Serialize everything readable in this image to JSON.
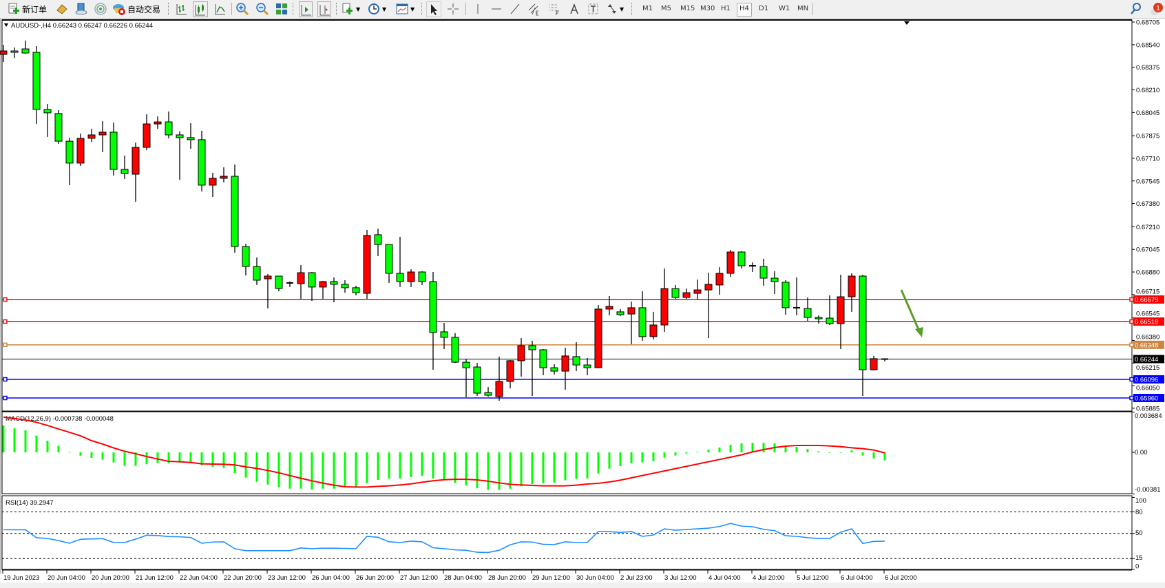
{
  "toolbar": {
    "new_order_label": "新订单",
    "auto_trading_label": "自动交易",
    "timeframes": [
      "M1",
      "M5",
      "M15",
      "M30",
      "H1",
      "H4",
      "D1",
      "W1",
      "MN"
    ],
    "selected_timeframe": "H4",
    "notification_count": "1"
  },
  "chart": {
    "header": "AUDUSD-,H4  0.66243 0.66247 0.66226 0.66244",
    "colors": {
      "bull": "#ff0000",
      "bear": "#00ff00",
      "macd_hist": "#00ff00",
      "macd_signal": "#ff0000",
      "rsi": "#1e90ff",
      "arrow": "#5a9e2a"
    },
    "price_ticks": [
      "0.68705",
      "0.68540",
      "0.68375",
      "0.68210",
      "0.68045",
      "0.67875",
      "0.67710",
      "0.67545",
      "0.67380",
      "0.67210",
      "0.67045",
      "0.66880",
      "0.66715",
      "0.66545",
      "0.66380",
      "0.66215",
      "0.66050",
      "0.65885"
    ],
    "levels": [
      {
        "price": "0.66679",
        "color": "#ff0000"
      },
      {
        "price": "0.66518",
        "color": "#ff0000"
      },
      {
        "price": "0.66348",
        "color": "#cd853f"
      },
      {
        "price": "0.66096",
        "color": "#0000ff"
      },
      {
        "price": "0.65960",
        "color": "#0000ff"
      }
    ],
    "bid": {
      "price": "0.66244",
      "color": "#000000"
    },
    "time_labels": [
      "19 Jun 2023",
      "20 Jun 04:00",
      "20 Jun 20:00",
      "21 Jun 12:00",
      "22 Jun 04:00",
      "22 Jun 20:00",
      "23 Jun 12:00",
      "26 Jun 04:00",
      "26 Jun 20:00",
      "27 Jun 12:00",
      "28 Jun 04:00",
      "28 Jun 20:00",
      "29 Jun 12:00",
      "30 Jun 04:00",
      "2 Jul 23:00",
      "3 Jul 12:00",
      "4 Jul 04:00",
      "4 Jul 20:00",
      "5 Jul 12:00",
      "6 Jul 04:00",
      "6 Jul 20:00"
    ],
    "macd": {
      "label": "MACD(12,26,9) -0.000738 -0.000048",
      "ticks": [
        "0.003684",
        "0.00",
        "-0.00381"
      ]
    },
    "rsi": {
      "label": "RSI(14) 39.2947",
      "ticks": [
        "100",
        "80",
        "50",
        "15",
        "0"
      ]
    }
  },
  "chart_data": {
    "type": "candlestick",
    "symbol": "AUDUSD-",
    "timeframe": "H4",
    "ylim": [
      0.65885,
      0.68705
    ],
    "open": [
      0.68469,
      0.68494,
      0.68509,
      0.68484,
      0.68067,
      0.68037,
      0.67835,
      0.67675,
      0.67856,
      0.67881,
      0.67901,
      0.67629,
      0.67594,
      0.6779,
      0.67961,
      0.67976,
      0.67881,
      0.67861,
      0.67846,
      0.67514,
      0.67564,
      0.67579,
      0.67066,
      0.6692,
      0.6683,
      0.6685,
      0.668,
      0.66795,
      0.66875,
      0.6677,
      0.6681,
      0.6679,
      0.66765,
      0.66724,
      0.67152,
      0.67081,
      0.6687,
      0.6681,
      0.6688,
      0.6681,
      0.66443,
      0.66403,
      0.66221,
      0.66186,
      0.66,
      0.6597,
      0.66081,
      0.66232,
      0.66342,
      0.66312,
      0.66181,
      0.66156,
      0.66262,
      0.66201,
      0.66181,
      0.66609,
      0.66589,
      0.66573,
      0.66619,
      0.66408,
      0.66493,
      0.66759,
      0.66694,
      0.66724,
      0.66749,
      0.66785,
      0.6687,
      0.67026,
      0.66925,
      0.6692,
      0.66835,
      0.66805,
      0.66619,
      0.66614,
      0.66548,
      0.66543,
      0.66503,
      0.66699,
      0.6685,
      0.66166,
      0.66243
    ],
    "high": [
      0.68539,
      0.68519,
      0.6857,
      0.68529,
      0.68107,
      0.68062,
      0.67861,
      0.67891,
      0.67926,
      0.67981,
      0.67971,
      0.6773,
      0.67825,
      0.68032,
      0.68016,
      0.68052,
      0.67906,
      0.67966,
      0.67911,
      0.67604,
      0.67644,
      0.67665,
      0.67086,
      0.66986,
      0.66865,
      0.6685,
      0.6681,
      0.6693,
      0.6688,
      0.66815,
      0.6684,
      0.6682,
      0.6678,
      0.67187,
      0.67197,
      0.67081,
      0.67137,
      0.669,
      0.66885,
      0.6688,
      0.66508,
      0.66433,
      0.66242,
      0.66216,
      0.6604,
      0.66262,
      0.66237,
      0.66397,
      0.66377,
      0.66317,
      0.66206,
      0.66327,
      0.66367,
      0.66252,
      0.66639,
      0.66704,
      0.66609,
      0.66664,
      0.66739,
      0.66589,
      0.66905,
      0.66785,
      0.66759,
      0.66825,
      0.66875,
      0.66915,
      0.67041,
      0.67031,
      0.6695,
      0.66976,
      0.66885,
      0.6682,
      0.6684,
      0.66694,
      0.66563,
      0.66709,
      0.6686,
      0.6687,
      0.6686,
      0.66267,
      0.66247
    ],
    "low": [
      0.68414,
      0.68444,
      0.68474,
      0.67961,
      0.67866,
      0.67815,
      0.67514,
      0.67654,
      0.6783,
      0.67755,
      0.67584,
      0.67559,
      0.67393,
      0.6777,
      0.67926,
      0.67856,
      0.67554,
      0.6778,
      0.67468,
      0.67428,
      0.67534,
      0.67021,
      0.66855,
      0.66785,
      0.66614,
      0.66739,
      0.6677,
      0.66684,
      0.66669,
      0.66684,
      0.66659,
      0.66729,
      0.66709,
      0.66684,
      0.66996,
      0.668,
      0.6677,
      0.6677,
      0.66785,
      0.66166,
      0.66317,
      0.66216,
      0.65965,
      0.65975,
      0.6597,
      0.6594,
      0.6603,
      0.66116,
      0.65975,
      0.66126,
      0.66131,
      0.6602,
      0.66156,
      0.66126,
      0.66181,
      0.66563,
      0.66558,
      0.66352,
      0.66377,
      0.66387,
      0.66443,
      0.66684,
      0.66684,
      0.66679,
      0.66397,
      0.66714,
      0.66845,
      0.66905,
      0.6688,
      0.6678,
      0.66719,
      0.66568,
      0.66563,
      0.66523,
      0.66503,
      0.66493,
      0.66317,
      0.66589,
      0.65975,
      0.66161,
      0.66226
    ],
    "close": [
      0.68494,
      0.68484,
      0.68479,
      0.68067,
      0.68042,
      0.67835,
      0.67675,
      0.67856,
      0.67881,
      0.67901,
      0.67629,
      0.67599,
      0.6779,
      0.67961,
      0.67976,
      0.67881,
      0.67861,
      0.67846,
      0.67514,
      0.67564,
      0.67579,
      0.67066,
      0.6692,
      0.6682,
      0.6685,
      0.66759,
      0.66795,
      0.66875,
      0.6677,
      0.6681,
      0.6679,
      0.66765,
      0.66729,
      0.67147,
      0.67081,
      0.6687,
      0.6681,
      0.6688,
      0.6681,
      0.66438,
      0.66403,
      0.66221,
      0.66181,
      0.65995,
      0.6598,
      0.66081,
      0.66232,
      0.66342,
      0.66312,
      0.66181,
      0.66156,
      0.66267,
      0.66201,
      0.66181,
      0.66609,
      0.66629,
      0.66568,
      0.66619,
      0.66408,
      0.66493,
      0.66759,
      0.66694,
      0.66729,
      0.66749,
      0.6679,
      0.6687,
      0.67026,
      0.66925,
      0.6692,
      0.66835,
      0.6681,
      0.66619,
      0.66614,
      0.66548,
      0.66538,
      0.66503,
      0.66699,
      0.6685,
      0.66166,
      0.66247,
      0.66244
    ],
    "macd": {
      "ylim": [
        -0.00381,
        0.003684
      ],
      "histogram": [
        0.00246,
        0.0022,
        0.00202,
        0.00153,
        0.00107,
        0.00059,
        3e-05,
        -0.0003,
        -0.0005,
        -0.00067,
        -0.00093,
        -0.00124,
        -0.00124,
        -0.00109,
        -0.00099,
        -0.00099,
        -0.00094,
        -0.00094,
        -0.00118,
        -0.00132,
        -0.00143,
        -0.00189,
        -0.00231,
        -0.00269,
        -0.00294,
        -0.00319,
        -0.00332,
        -0.00332,
        -0.0034,
        -0.00332,
        -0.00332,
        -0.00315,
        -0.00315,
        -0.00281,
        -0.00252,
        -0.00239,
        -0.00239,
        -0.00227,
        -0.00214,
        -0.00239,
        -0.00248,
        -0.00281,
        -0.00302,
        -0.00327,
        -0.00344,
        -0.00344,
        -0.00332,
        -0.0031,
        -0.0029,
        -0.00281,
        -0.00277,
        -0.00256,
        -0.00243,
        -0.00237,
        -0.00193,
        -0.00149,
        -0.00126,
        -0.00101,
        -0.00092,
        -0.0008,
        -0.00048,
        -0.00029,
        -0.0001,
        4e-05,
        0.00025,
        0.00044,
        0.00069,
        0.00082,
        0.00088,
        0.00088,
        0.00082,
        0.00052,
        0.0005,
        0.00031,
        0.0001,
        -4e-05,
        -4e-05,
        0.00019,
        -0.00029,
        -0.00055,
        -0.000738
      ],
      "signal": [
        0.00323,
        0.0031,
        0.00296,
        0.00275,
        0.00246,
        0.00214,
        0.00183,
        0.00151,
        0.00107,
        0.00076,
        0.00041,
        0.0001,
        -0.00013,
        -0.00038,
        -0.00061,
        -0.00082,
        -0.00086,
        -0.00093,
        -0.00105,
        -0.00107,
        -0.00109,
        -0.00115,
        -0.00132,
        -0.00147,
        -0.00166,
        -0.00187,
        -0.00212,
        -0.00237,
        -0.0026,
        -0.00281,
        -0.003,
        -0.00315,
        -0.00317,
        -0.00317,
        -0.00311,
        -0.00306,
        -0.00298,
        -0.00288,
        -0.00273,
        -0.0026,
        -0.0025,
        -0.00246,
        -0.00246,
        -0.00252,
        -0.00264,
        -0.00279,
        -0.00292,
        -0.00298,
        -0.00302,
        -0.00306,
        -0.00306,
        -0.00306,
        -0.003,
        -0.0029,
        -0.00283,
        -0.00271,
        -0.00254,
        -0.00233,
        -0.00212,
        -0.00191,
        -0.0017,
        -0.00149,
        -0.00128,
        -0.00107,
        -0.00086,
        -0.00065,
        -0.00044,
        -0.00023,
        4e-05,
        0.00025,
        0.00044,
        0.00057,
        0.00063,
        0.00063,
        0.00063,
        0.00059,
        0.00052,
        0.00042,
        0.00034,
        0.00021,
        -4.8e-05
      ]
    },
    "rsi": {
      "ylim": [
        0,
        100
      ],
      "levels": [
        80,
        50,
        15
      ],
      "values": [
        55.1,
        55,
        55,
        44,
        43,
        40,
        36.4,
        41.8,
        42.4,
        42.7,
        37.4,
        37.4,
        42,
        47.5,
        47,
        45.6,
        45.3,
        44.3,
        36.4,
        38,
        38.3,
        28.8,
        26,
        26,
        26,
        26,
        26,
        29.8,
        28.8,
        29.5,
        29.5,
        29.1,
        28.8,
        45.9,
        44.6,
        38.3,
        37.4,
        39.3,
        38.3,
        30.1,
        28.8,
        27.2,
        26.6,
        23.8,
        23.5,
        26.6,
        34.2,
        38.3,
        38,
        34.8,
        34.5,
        38.3,
        37.4,
        37.4,
        52.5,
        52.5,
        51.3,
        52.5,
        45.9,
        47.8,
        56.3,
        54.4,
        55.4,
        56.3,
        57.3,
        59.5,
        63.9,
        60.1,
        59.2,
        55.7,
        53.8,
        46.8,
        45.9,
        44,
        43,
        43,
        51.6,
        56.3,
        36.1,
        38.9,
        39.2947
      ]
    }
  }
}
